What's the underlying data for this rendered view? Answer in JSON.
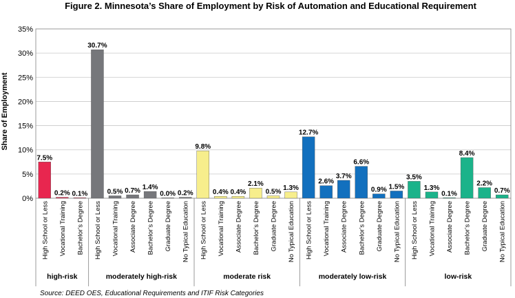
{
  "chart_data": {
    "type": "bar",
    "title": "Figure 2. Minnesota’s Share of Employment by Risk of Automation and Educational Requirement",
    "ylabel": "Share of Employment",
    "xlabel": "",
    "ylim": [
      0,
      35
    ],
    "yticks": [
      "0%",
      "5%",
      "10%",
      "15%",
      "20%",
      "25%",
      "30%",
      "35%"
    ],
    "grid": true,
    "groups": [
      {
        "name": "high-risk",
        "color": "#e8264f",
        "categories": [
          "High School or Less",
          "Vocational Training",
          "Bachelor’s Degree"
        ],
        "values": [
          7.5,
          0.2,
          0.1
        ],
        "labels": [
          "7.5%",
          "0.2%",
          "0.1%"
        ]
      },
      {
        "name": "moderately high-risk",
        "color": "#76777b",
        "categories": [
          "High School or Less",
          "Vocational Training",
          "Associate Degree",
          "Bachelor’s Degree",
          "Graduate Degree",
          "No Typical Education"
        ],
        "values": [
          30.7,
          0.5,
          0.7,
          1.4,
          0.0,
          0.2
        ],
        "labels": [
          "30.7%",
          "0.5%",
          "0.7%",
          "1.4%",
          "0.0%",
          "0.2%"
        ]
      },
      {
        "name": "moderate risk",
        "color": "#f7ee8c",
        "categories": [
          "High School or Less",
          "Vocational Training",
          "Associate Degree",
          "Bachelor’s Degree",
          "Graduate Degree",
          "No Typical Education"
        ],
        "values": [
          9.8,
          0.4,
          0.4,
          2.1,
          0.5,
          1.3
        ],
        "labels": [
          "9.8%",
          "0.4%",
          "0.4%",
          "2.1%",
          "0.5%",
          "1.3%"
        ]
      },
      {
        "name": "moderately low-risk",
        "color": "#1270be",
        "categories": [
          "High School or Less",
          "Vocational Training",
          "Associate Degree",
          "Bachelor’s Degree",
          "Graduate Degree",
          "No Typical Education"
        ],
        "values": [
          12.7,
          2.6,
          3.7,
          6.6,
          0.9,
          1.5
        ],
        "labels": [
          "12.7%",
          "2.6%",
          "3.7%",
          "6.6%",
          "0.9%",
          "1.5%"
        ]
      },
      {
        "name": "low-risk",
        "color": "#1bb38a",
        "categories": [
          "High School or Less",
          "Vocational Training",
          "Associate Degree",
          "Bachelor’s Degree",
          "Graduate Degree",
          "No Typical Education"
        ],
        "values": [
          3.5,
          1.3,
          0.1,
          8.4,
          2.2,
          0.7
        ],
        "labels": [
          "3.5%",
          "1.3%",
          "0.1%",
          "8.4%",
          "2.2%",
          "0.7%"
        ]
      }
    ]
  },
  "source": "Source: DEED OES, Educational Requirements and ITIF Risk Categories"
}
